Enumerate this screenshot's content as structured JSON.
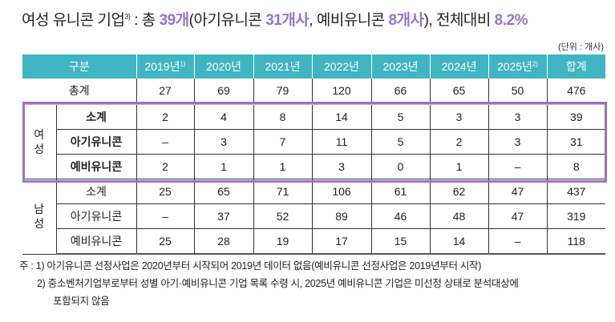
{
  "title": {
    "prefix": "여성 유니콘 기업",
    "sup": "3)",
    "mid": " : 총 ",
    "total": "39개",
    "p1": "(아기유니콘 ",
    "baby": "31개사",
    "p2": ", 예비유니콘 ",
    "pre": "8개사",
    "p3": "), 전체대비 ",
    "ratio": "8.2%"
  },
  "unit": "(단위 : 개사)",
  "colors": {
    "header": "#40b5c2",
    "highlight": "#9b72c9"
  },
  "table": {
    "headers": [
      {
        "label": "구분"
      },
      {
        "label": "2019년",
        "sup": "1)"
      },
      {
        "label": "2020년"
      },
      {
        "label": "2021년"
      },
      {
        "label": "2022년"
      },
      {
        "label": "2023년"
      },
      {
        "label": "2024년"
      },
      {
        "label": "2025년",
        "sup": "2)"
      },
      {
        "label": "합계"
      }
    ],
    "total": {
      "label": "총계",
      "values": [
        "27",
        "69",
        "79",
        "120",
        "66",
        "65",
        "50",
        "476"
      ]
    },
    "groups": [
      {
        "label": "여성",
        "rows": [
          {
            "label": "소계",
            "values": [
              "2",
              "4",
              "8",
              "14",
              "5",
              "3",
              "3",
              "39"
            ]
          },
          {
            "label": "아기유니콘",
            "values": [
              "–",
              "3",
              "7",
              "11",
              "5",
              "2",
              "3",
              "31"
            ]
          },
          {
            "label": "예비유니콘",
            "values": [
              "2",
              "1",
              "1",
              "3",
              "0",
              "1",
              "–",
              "8"
            ]
          }
        ]
      },
      {
        "label": "남성",
        "rows": [
          {
            "label": "소계",
            "values": [
              "25",
              "65",
              "71",
              "106",
              "61",
              "62",
              "47",
              "437"
            ]
          },
          {
            "label": "아기유니콘",
            "values": [
              "–",
              "37",
              "52",
              "89",
              "46",
              "48",
              "47",
              "319"
            ]
          },
          {
            "label": "예비유니콘",
            "values": [
              "25",
              "28",
              "19",
              "17",
              "15",
              "14",
              "–",
              "118"
            ]
          }
        ]
      }
    ]
  },
  "notes": [
    "주 : 1) 아기유니콘 선정사업은 2020년부터 시작되어 2019년 데이터 없음(예비유니콘 선정사업은 2019년부터 시작)",
    "2) 중소벤처기업부로부터 성별 아기·예비유니콘 기업 목록 수령 시, 2025년 예비유니콘 기업은 미선정 상태로 분석대상에",
    "포함되지 않음"
  ]
}
